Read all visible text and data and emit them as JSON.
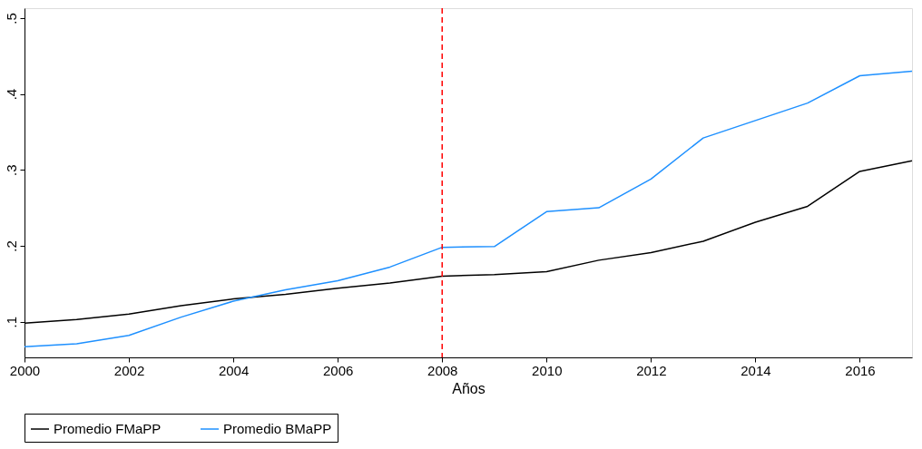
{
  "chart_data": {
    "type": "line",
    "xlabel": "Años",
    "x": [
      2000,
      2001,
      2002,
      2003,
      2004,
      2005,
      2006,
      2007,
      2008,
      2009,
      2010,
      2011,
      2012,
      2013,
      2014,
      2015,
      2016,
      2017
    ],
    "series": [
      {
        "name": "Promedio FMaPP",
        "color": "#000000",
        "values": [
          0.098,
          0.103,
          0.11,
          0.121,
          0.13,
          0.136,
          0.144,
          0.151,
          0.16,
          0.162,
          0.166,
          0.181,
          0.191,
          0.206,
          0.231,
          0.252,
          0.298,
          0.312
        ]
      },
      {
        "name": "Promedio BMaPP",
        "color": "#1e90ff",
        "values": [
          0.067,
          0.071,
          0.082,
          0.106,
          0.127,
          0.142,
          0.154,
          0.172,
          0.198,
          0.199,
          0.245,
          0.25,
          0.288,
          0.342,
          0.365,
          0.388,
          0.424,
          0.43
        ]
      }
    ],
    "xlim": [
      2000,
      2017
    ],
    "xticks": [
      2000,
      2002,
      2004,
      2006,
      2008,
      2010,
      2012,
      2014,
      2016
    ],
    "ylim": [
      0.053,
      0.513
    ],
    "yticks": [
      {
        "value": 0.1,
        "label": ".1"
      },
      {
        "value": 0.2,
        "label": ".2"
      },
      {
        "value": 0.3,
        "label": ".3"
      },
      {
        "value": 0.4,
        "label": ".4"
      },
      {
        "value": 0.5,
        "label": ".5"
      }
    ],
    "ref_lines": [
      {
        "axis": "x",
        "value": 2008,
        "color": "#ff0000",
        "line_style": "dashed"
      }
    ],
    "legend": "bottom",
    "grid": false,
    "marker": "none",
    "line_style": "solid"
  }
}
